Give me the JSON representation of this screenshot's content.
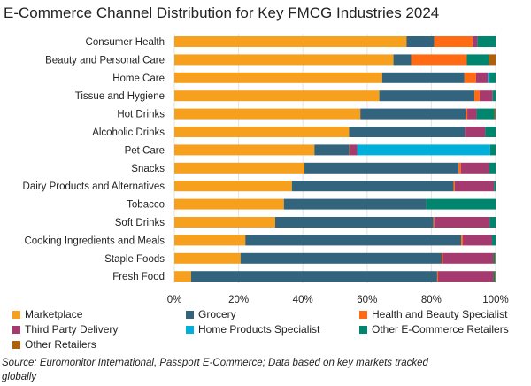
{
  "chart_data": {
    "type": "bar",
    "orientation": "horizontal-stacked-100",
    "title": "E-Commerce Channel Distribution for Key FMCG Industries 2024",
    "categories": [
      "Consumer Health",
      "Beauty and Personal Care",
      "Home Care",
      "Tissue and Hygiene",
      "Hot Drinks",
      "Alcoholic Drinks",
      "Pet Care",
      "Snacks",
      "Dairy Products and Alternatives",
      "Tobacco",
      "Soft Drinks",
      "Cooking Ingredients and Meals",
      "Staple Foods",
      "Fresh Food"
    ],
    "xticks": [
      "0%",
      "20%",
      "40%",
      "60%",
      "80%",
      "100%"
    ],
    "xlim": [
      0,
      100
    ],
    "grid": true,
    "legend_position": "bottom",
    "series": [
      {
        "name": "Marketplace",
        "color": "#F7A01D",
        "values": [
          72.3,
          68.2,
          64.7,
          63.8,
          57.9,
          54.4,
          43.6,
          40.5,
          36.6,
          34.1,
          31.4,
          22.1,
          20.6,
          5.2
        ]
      },
      {
        "name": "Grocery",
        "color": "#33647E",
        "values": [
          8.6,
          5.5,
          25.6,
          29.6,
          32.8,
          36.0,
          10.9,
          48.0,
          50.3,
          44.3,
          49.2,
          67.2,
          62.6,
          76.6
        ]
      },
      {
        "name": "Health and Beauty Specialist",
        "color": "#FF6A13",
        "values": [
          11.9,
          17.3,
          3.6,
          1.6,
          0.5,
          0,
          0.2,
          0.7,
          0.4,
          0,
          0.3,
          0.5,
          0.4,
          0.3
        ]
      },
      {
        "name": "Third Party Delivery",
        "color": "#A53A6E",
        "values": [
          1.5,
          0,
          3.7,
          4.1,
          2.9,
          6.4,
          2.2,
          8.8,
          12.2,
          0,
          17.2,
          9.1,
          15.7,
          17.2
        ]
      },
      {
        "name": "Home Products Specialist",
        "color": "#00B0DA",
        "values": [
          0,
          0,
          0.5,
          0,
          0,
          0,
          41.4,
          0,
          0,
          0,
          0,
          0,
          0,
          0
        ]
      },
      {
        "name": "Other E-Commerce Retailers",
        "color": "#00856F",
        "values": [
          5.7,
          6.9,
          1.9,
          0.9,
          5.6,
          3.2,
          1.7,
          2.0,
          0.5,
          21.6,
          1.9,
          1.1,
          0.5,
          0.5
        ]
      },
      {
        "name": "Other Retailers",
        "color": "#B05F0A",
        "values": [
          0,
          2.1,
          0,
          0,
          0.3,
          0,
          0,
          0,
          0,
          0,
          0,
          0,
          0.2,
          0.2
        ]
      }
    ]
  },
  "source": "Source: Euromonitor International, Passport E-Commerce; Data based on key markets tracked globally"
}
